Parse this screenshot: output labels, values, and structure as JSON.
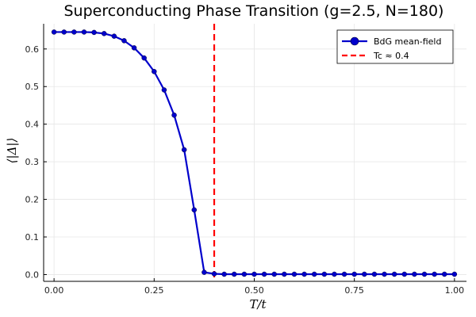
{
  "chart_data": {
    "type": "line",
    "title": "Superconducting Phase Transition (g=2.5, N=180)",
    "xlabel": "T/t",
    "ylabel": "⟨|Δ|⟩",
    "xlim": [
      -0.026,
      1.03
    ],
    "ylim": [
      -0.018,
      0.667
    ],
    "xticks": [
      0.0,
      0.25,
      0.5,
      0.75,
      1.0
    ],
    "xtick_labels": [
      "0.00",
      "0.25",
      "0.50",
      "0.75",
      "1.00"
    ],
    "yticks": [
      0.0,
      0.1,
      0.2,
      0.3,
      0.4,
      0.5,
      0.6
    ],
    "ytick_labels": [
      "0.0",
      "0.1",
      "0.2",
      "0.3",
      "0.4",
      "0.5",
      "0.6"
    ],
    "grid": true,
    "legend_position": "top-right",
    "series": [
      {
        "name": "BdG mean-field",
        "color": "#0000cc",
        "marker": "circle",
        "x": [
          0.0,
          0.025,
          0.05,
          0.075,
          0.1,
          0.125,
          0.15,
          0.175,
          0.2,
          0.225,
          0.25,
          0.275,
          0.3,
          0.325,
          0.35,
          0.375,
          0.4,
          0.425,
          0.45,
          0.475,
          0.5,
          0.525,
          0.55,
          0.575,
          0.6,
          0.625,
          0.65,
          0.675,
          0.7,
          0.725,
          0.75,
          0.775,
          0.8,
          0.825,
          0.85,
          0.875,
          0.9,
          0.925,
          0.95,
          0.975,
          1.0
        ],
        "y": [
          0.645,
          0.645,
          0.645,
          0.645,
          0.644,
          0.641,
          0.634,
          0.622,
          0.603,
          0.576,
          0.54,
          0.491,
          0.424,
          0.332,
          0.172,
          0.006,
          0.002,
          0.001,
          0.001,
          0.001,
          0.001,
          0.001,
          0.001,
          0.001,
          0.001,
          0.001,
          0.001,
          0.001,
          0.001,
          0.001,
          0.001,
          0.001,
          0.001,
          0.001,
          0.001,
          0.001,
          0.001,
          0.001,
          0.001,
          0.001,
          0.001
        ]
      }
    ],
    "vline": {
      "name": "Tc ≈ 0.4",
      "x": 0.4,
      "color": "#ff0000",
      "style": "dashed"
    }
  }
}
